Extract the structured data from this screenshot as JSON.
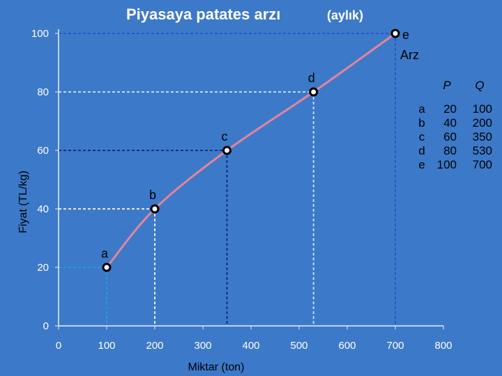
{
  "title": "Piyasaya patates arzı",
  "subtitle": "(aylık)",
  "chart_data": {
    "type": "line",
    "xlabel": "Miktar (ton)",
    "ylabel": "Fiyat (TL/kg)",
    "xlim": [
      0,
      800
    ],
    "ylim": [
      0,
      100
    ],
    "x_ticks": [
      0,
      100,
      200,
      300,
      400,
      500,
      600,
      700,
      800
    ],
    "y_ticks": [
      0,
      20,
      40,
      60,
      80,
      100
    ],
    "series": [
      {
        "name": "Arz",
        "points": [
          {
            "label": "a",
            "x": 100,
            "y": 20
          },
          {
            "label": "b",
            "x": 200,
            "y": 40
          },
          {
            "label": "c",
            "x": 350,
            "y": 60
          },
          {
            "label": "d",
            "x": 530,
            "y": 80
          },
          {
            "label": "e",
            "x": 700,
            "y": 100
          }
        ]
      }
    ],
    "table": {
      "headers": [
        "P",
        "Q"
      ],
      "rows": [
        {
          "label": "a",
          "P": "20",
          "Q": "100"
        },
        {
          "label": "b",
          "P": "40",
          "Q": "200"
        },
        {
          "label": "c",
          "P": "60",
          "Q": "350"
        },
        {
          "label": "d",
          "P": "80",
          "Q": "530"
        },
        {
          "label": "e",
          "P": "100",
          "Q": "700"
        }
      ]
    },
    "colors": {
      "background": "#3d79c9",
      "curve": "#e4849a",
      "axis": "#e9eef8"
    }
  }
}
